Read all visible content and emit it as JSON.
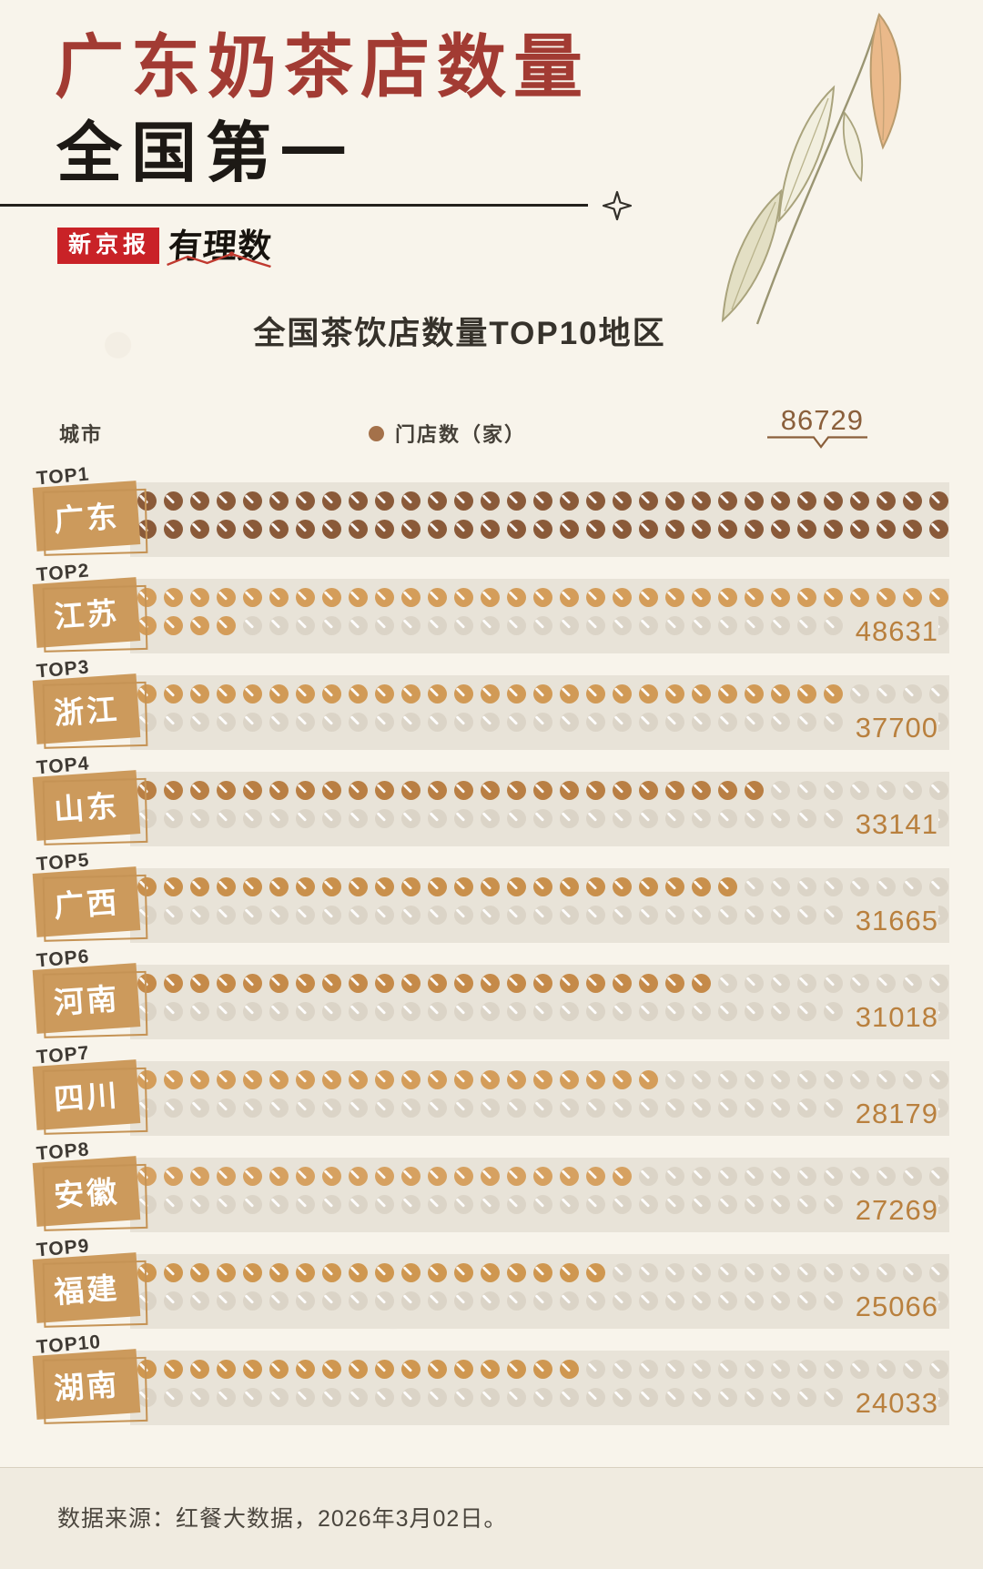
{
  "page": {
    "title_line1": "广东奶茶店数量",
    "title_line2": "全国第一",
    "publisher": "新京报",
    "brand": "有理数",
    "footer": "数据来源：红餐大数据，2026年3月02日。"
  },
  "chart_data": {
    "type": "pictogram-bar",
    "title": "全国茶饮店数量TOP10地区",
    "legend": {
      "city_label": "城市",
      "count_label": "门店数（家）",
      "legend_dot_color": "#a4714a"
    },
    "categories": [
      "广东",
      "江苏",
      "浙江",
      "山东",
      "广西",
      "河南",
      "四川",
      "安徽",
      "福建",
      "湖南"
    ],
    "values": [
      86729,
      48631,
      37700,
      33141,
      31665,
      31018,
      28179,
      27269,
      25066,
      24033
    ],
    "max_value": 86729,
    "dots_per_line": 31,
    "dot_lines": 2,
    "rows": [
      {
        "rank": "TOP1",
        "city": "广东",
        "value": 86729,
        "dot_color": "#8a5a39"
      },
      {
        "rank": "TOP2",
        "city": "江苏",
        "value": 48631,
        "dot_color": "#d49d5a"
      },
      {
        "rank": "TOP3",
        "city": "浙江",
        "value": 37700,
        "dot_color": "#d19a56"
      },
      {
        "rank": "TOP4",
        "city": "山东",
        "value": 33141,
        "dot_color": "#b97f44"
      },
      {
        "rank": "TOP5",
        "city": "广西",
        "value": 31665,
        "dot_color": "#c9904c"
      },
      {
        "rank": "TOP6",
        "city": "河南",
        "value": 31018,
        "dot_color": "#c58a49"
      },
      {
        "rank": "TOP7",
        "city": "四川",
        "value": 28179,
        "dot_color": "#d49d5a"
      },
      {
        "rank": "TOP8",
        "city": "安徽",
        "value": 27269,
        "dot_color": "#d6a161"
      },
      {
        "rank": "TOP9",
        "city": "福建",
        "value": 25066,
        "dot_color": "#cf9750"
      },
      {
        "rank": "TOP10",
        "city": "湖南",
        "value": 24033,
        "dot_color": "#cf9750"
      }
    ],
    "colors": {
      "band": "#e8e3d8",
      "empty_dot": "#dbd4c7",
      "value_text": "#b9803e",
      "annotated_value_text": "#8a5f3b",
      "badge": "#cc9a5c",
      "title_red": "#a23b33",
      "title_black": "#1d1915",
      "publisher_red": "#c92227"
    },
    "layout": {
      "legend_position": "top",
      "grid": false,
      "annotation_row": 0
    }
  }
}
